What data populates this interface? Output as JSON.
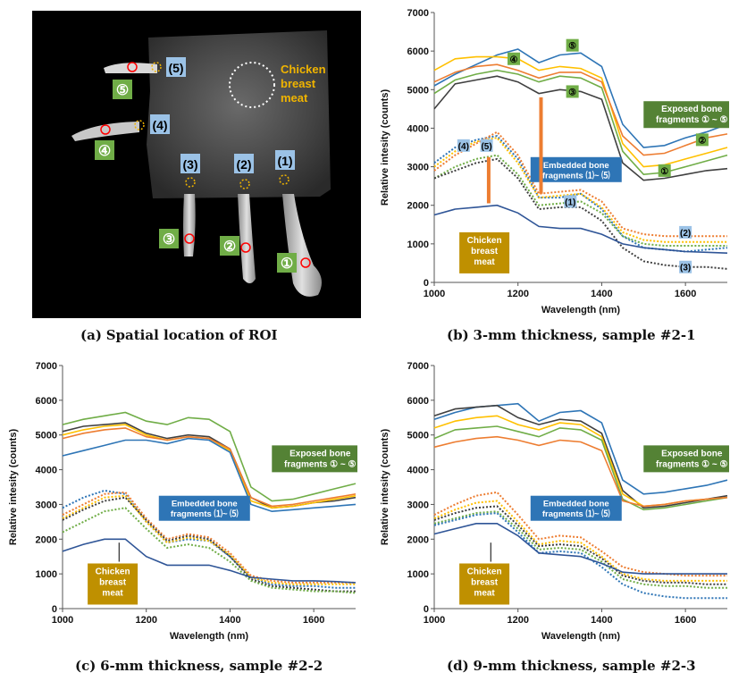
{
  "panel_a": {
    "caption_tag": "(a)",
    "caption_text": "Spatial location of ROI",
    "meat_label_line1": "Chicken",
    "meat_label_line2": "breast",
    "meat_label_line3": "meat",
    "blue_labels": [
      "(1)",
      "(2)",
      "(3)",
      "(4)",
      "(5)"
    ],
    "green_labels": [
      "①",
      "②",
      "③",
      "④",
      "⑤"
    ],
    "colors": {
      "background": "#000000",
      "label_yellow": "#f0b400",
      "blue_box": "#9bc2e6",
      "green_box": "#70ad47",
      "red_marker": "#ff0000"
    }
  },
  "chart_data": [
    {
      "type": "line",
      "panel": "b",
      "caption_tag": "(b)",
      "caption_text": "3-mm thickness, sample #2-1",
      "xlabel": "Wavelength (nm)",
      "ylabel": "Relative intesity (counts)",
      "xlim": [
        1000,
        1700
      ],
      "ylim": [
        0,
        7000
      ],
      "x_ticks": [
        "1000",
        "1200",
        "1400",
        "1600"
      ],
      "y_ticks": [
        "0",
        "1000",
        "2000",
        "3000",
        "4000",
        "5000",
        "6000",
        "7000"
      ],
      "annotations": {
        "exposed_line1": "Exposed bone",
        "exposed_line2": "fragments ① ~ ⑤",
        "embedded_line1": "Embedded bone",
        "embedded_line2": "fragments ⑴~ ⑸",
        "meat_line1": "Chicken",
        "meat_line2": "breast",
        "meat_line3": "meat",
        "curve_labels": [
          "⑤",
          "④",
          "③",
          "②",
          "①",
          "(4)",
          "(5)",
          "(1)",
          "(2)",
          "(3)"
        ]
      },
      "x": [
        1000,
        1050,
        1100,
        1150,
        1200,
        1250,
        1300,
        1350,
        1400,
        1450,
        1500,
        1550,
        1600,
        1650,
        1700
      ],
      "series": [
        {
          "style": "solid",
          "color": "#2e75b6",
          "values": [
            5100,
            5400,
            5650,
            5900,
            6050,
            5700,
            5900,
            5950,
            5600,
            4100,
            3500,
            3550,
            3750,
            3900,
            4100
          ]
        },
        {
          "style": "solid",
          "color": "#ffc000",
          "values": [
            5500,
            5800,
            5850,
            5850,
            5800,
            5500,
            5600,
            5550,
            5300,
            3600,
            3000,
            3050,
            3200,
            3350,
            3500
          ]
        },
        {
          "style": "solid",
          "color": "#ed7d31",
          "values": [
            5200,
            5450,
            5600,
            5650,
            5500,
            5300,
            5450,
            5450,
            5200,
            3800,
            3300,
            3350,
            3550,
            3750,
            3850
          ]
        },
        {
          "style": "solid",
          "color": "#70ad47",
          "values": [
            4900,
            5250,
            5400,
            5500,
            5400,
            5200,
            5350,
            5300,
            5050,
            3400,
            2800,
            2850,
            3000,
            3150,
            3300
          ]
        },
        {
          "style": "solid",
          "color": "#404040",
          "values": [
            4500,
            5150,
            5250,
            5350,
            5200,
            4900,
            5000,
            4950,
            4750,
            3100,
            2650,
            2700,
            2800,
            2900,
            2950
          ]
        },
        {
          "style": "dotted",
          "color": "#2e75b6",
          "values": [
            3100,
            3500,
            3700,
            3800,
            3200,
            2200,
            2200,
            2300,
            1900,
            1200,
            900,
            850,
            800,
            850,
            900
          ]
        },
        {
          "style": "dotted",
          "color": "#ffc000",
          "values": [
            3000,
            3400,
            3650,
            3750,
            3100,
            2200,
            2250,
            2300,
            1950,
            1300,
            1100,
            1050,
            1050,
            1050,
            1050
          ]
        },
        {
          "style": "dotted",
          "color": "#ed7d31",
          "values": [
            2900,
            3300,
            3600,
            3900,
            3300,
            2300,
            2350,
            2400,
            2100,
            1400,
            1250,
            1200,
            1200,
            1200,
            1200
          ]
        },
        {
          "style": "dotted",
          "color": "#70ad47",
          "values": [
            2700,
            3000,
            3200,
            3300,
            2800,
            2000,
            2050,
            2100,
            1800,
            1200,
            1000,
            950,
            950,
            950,
            950
          ]
        },
        {
          "style": "dotted",
          "color": "#404040",
          "values": [
            2700,
            2900,
            3100,
            3200,
            2700,
            1900,
            1950,
            1950,
            1600,
            900,
            550,
            450,
            400,
            400,
            350
          ]
        },
        {
          "style": "solid",
          "color": "#2f5597",
          "values": [
            1750,
            1900,
            1950,
            2000,
            1800,
            1450,
            1400,
            1400,
            1250,
            1000,
            900,
            850,
            800,
            780,
            760
          ]
        }
      ]
    },
    {
      "type": "line",
      "panel": "c",
      "caption_tag": "(c)",
      "caption_text": "6-mm thickness, sample #2-2",
      "xlabel": "Wavelength (nm)",
      "ylabel": "Relative intesity (counts)",
      "xlim": [
        1000,
        1700
      ],
      "ylim": [
        0,
        7000
      ],
      "x_ticks": [
        "1000",
        "1200",
        "1400",
        "1600"
      ],
      "y_ticks": [
        "0",
        "1000",
        "2000",
        "3000",
        "4000",
        "5000",
        "6000",
        "7000"
      ],
      "annotations": {
        "exposed_line1": "Exposed bone",
        "exposed_line2": "fragments ① ~ ⑤",
        "embedded_line1": "Embedded bone",
        "embedded_line2": "fragments ⑴~ ⑸",
        "meat_line1": "Chicken",
        "meat_line2": "breast",
        "meat_line3": "meat",
        "curve_labels": []
      },
      "x": [
        1000,
        1050,
        1100,
        1150,
        1200,
        1250,
        1300,
        1350,
        1400,
        1450,
        1500,
        1550,
        1600,
        1650,
        1700
      ],
      "series": [
        {
          "style": "solid",
          "color": "#70ad47",
          "values": [
            5300,
            5450,
            5550,
            5650,
            5400,
            5300,
            5500,
            5450,
            5100,
            3500,
            3100,
            3150,
            3300,
            3450,
            3600
          ]
        },
        {
          "style": "solid",
          "color": "#404040",
          "values": [
            5100,
            5250,
            5300,
            5350,
            5050,
            4900,
            5000,
            4950,
            4600,
            3200,
            2900,
            2950,
            3050,
            3100,
            3200
          ]
        },
        {
          "style": "solid",
          "color": "#ffc000",
          "values": [
            5000,
            5150,
            5250,
            5300,
            5000,
            4850,
            4950,
            4900,
            4550,
            3100,
            2900,
            2950,
            3050,
            3150,
            3250
          ]
        },
        {
          "style": "solid",
          "color": "#ed7d31",
          "values": [
            4900,
            5050,
            5150,
            5200,
            4950,
            4850,
            4950,
            4900,
            4600,
            3200,
            2950,
            3000,
            3100,
            3200,
            3300
          ]
        },
        {
          "style": "solid",
          "color": "#2e75b6",
          "values": [
            4400,
            4550,
            4700,
            4850,
            4850,
            4750,
            4900,
            4850,
            4500,
            3000,
            2800,
            2850,
            2900,
            2950,
            3000
          ]
        },
        {
          "style": "dotted",
          "color": "#2e75b6",
          "values": [
            2900,
            3200,
            3400,
            3300,
            2500,
            1900,
            2000,
            1950,
            1500,
            900,
            700,
            650,
            650,
            600,
            600
          ]
        },
        {
          "style": "dotted",
          "color": "#ed7d31",
          "values": [
            2700,
            3000,
            3300,
            3350,
            2600,
            2000,
            2150,
            2050,
            1600,
            950,
            800,
            750,
            750,
            750,
            750
          ]
        },
        {
          "style": "dotted",
          "color": "#ffc000",
          "values": [
            2600,
            2900,
            3200,
            3250,
            2500,
            1900,
            2050,
            1950,
            1550,
            900,
            750,
            700,
            700,
            700,
            700
          ]
        },
        {
          "style": "dotted",
          "color": "#404040",
          "values": [
            2550,
            2850,
            3100,
            3200,
            2550,
            1950,
            2100,
            2000,
            1500,
            850,
            650,
            600,
            550,
            500,
            500
          ]
        },
        {
          "style": "dotted",
          "color": "#70ad47",
          "values": [
            2200,
            2500,
            2800,
            2900,
            2300,
            1750,
            1850,
            1750,
            1350,
            800,
            600,
            550,
            500,
            500,
            450
          ]
        },
        {
          "style": "solid",
          "color": "#2f5597",
          "values": [
            1650,
            1850,
            2000,
            2000,
            1500,
            1250,
            1250,
            1250,
            1100,
            900,
            850,
            800,
            800,
            780,
            750
          ]
        }
      ]
    },
    {
      "type": "line",
      "panel": "d",
      "caption_tag": "(d)",
      "caption_text": "9-mm thickness, sample #2-3",
      "xlabel": "Wavelength (nm)",
      "ylabel": "Relative intesity (counts)",
      "xlim": [
        1000,
        1700
      ],
      "ylim": [
        0,
        7000
      ],
      "x_ticks": [
        "1000",
        "1200",
        "1400",
        "1600"
      ],
      "y_ticks": [
        "0",
        "1000",
        "2000",
        "3000",
        "4000",
        "5000",
        "6000",
        "7000"
      ],
      "annotations": {
        "exposed_line1": "Exposed bone",
        "exposed_line2": "fragments ① ~ ⑤",
        "embedded_line1": "Embedded bone",
        "embedded_line2": "fragments ⑴~ ⑸",
        "meat_line1": "Chicken",
        "meat_line2": "breast",
        "meat_line3": "meat",
        "curve_labels": []
      },
      "x": [
        1000,
        1050,
        1100,
        1150,
        1200,
        1250,
        1300,
        1350,
        1400,
        1450,
        1500,
        1550,
        1600,
        1650,
        1700
      ],
      "series": [
        {
          "style": "solid",
          "color": "#2e75b6",
          "values": [
            5450,
            5650,
            5800,
            5850,
            5900,
            5400,
            5650,
            5700,
            5350,
            3700,
            3300,
            3350,
            3450,
            3550,
            3700
          ]
        },
        {
          "style": "solid",
          "color": "#404040",
          "values": [
            5550,
            5750,
            5800,
            5850,
            5500,
            5300,
            5450,
            5400,
            5050,
            3400,
            2900,
            2950,
            3050,
            3150,
            3250
          ]
        },
        {
          "style": "solid",
          "color": "#ffc000",
          "values": [
            5200,
            5400,
            5500,
            5550,
            5300,
            5150,
            5350,
            5300,
            4950,
            3300,
            2950,
            3000,
            3100,
            3150,
            3200
          ]
        },
        {
          "style": "solid",
          "color": "#70ad47",
          "values": [
            4900,
            5150,
            5200,
            5250,
            5100,
            4950,
            5200,
            5150,
            4850,
            3150,
            2850,
            2900,
            3000,
            3100,
            3200
          ]
        },
        {
          "style": "solid",
          "color": "#ed7d31",
          "values": [
            4650,
            4800,
            4900,
            4950,
            4850,
            4700,
            4850,
            4800,
            4550,
            3100,
            2950,
            3000,
            3100,
            3150,
            3200
          ]
        },
        {
          "style": "dotted",
          "color": "#ed7d31",
          "values": [
            2700,
            3000,
            3250,
            3350,
            2700,
            2000,
            2100,
            2050,
            1650,
            1200,
            1050,
            1000,
            950,
            950,
            950
          ]
        },
        {
          "style": "dotted",
          "color": "#ffc000",
          "values": [
            2600,
            2850,
            3050,
            3100,
            2500,
            1850,
            1950,
            1900,
            1500,
            1000,
            850,
            800,
            800,
            800,
            800
          ]
        },
        {
          "style": "dotted",
          "color": "#404040",
          "values": [
            2550,
            2750,
            2900,
            2950,
            2400,
            1800,
            1850,
            1800,
            1450,
            950,
            800,
            750,
            750,
            700,
            700
          ]
        },
        {
          "style": "dotted",
          "color": "#70ad47",
          "values": [
            2450,
            2600,
            2750,
            2800,
            2300,
            1700,
            1750,
            1700,
            1350,
            850,
            700,
            650,
            650,
            600,
            600
          ]
        },
        {
          "style": "dotted",
          "color": "#2e75b6",
          "values": [
            2400,
            2550,
            2700,
            2750,
            2200,
            1600,
            1650,
            1600,
            1200,
            700,
            450,
            350,
            300,
            300,
            300
          ]
        },
        {
          "style": "solid",
          "color": "#2f5597",
          "values": [
            2150,
            2300,
            2450,
            2450,
            2100,
            1600,
            1550,
            1500,
            1300,
            1050,
            1000,
            1000,
            1000,
            1000,
            1000
          ]
        }
      ]
    }
  ]
}
